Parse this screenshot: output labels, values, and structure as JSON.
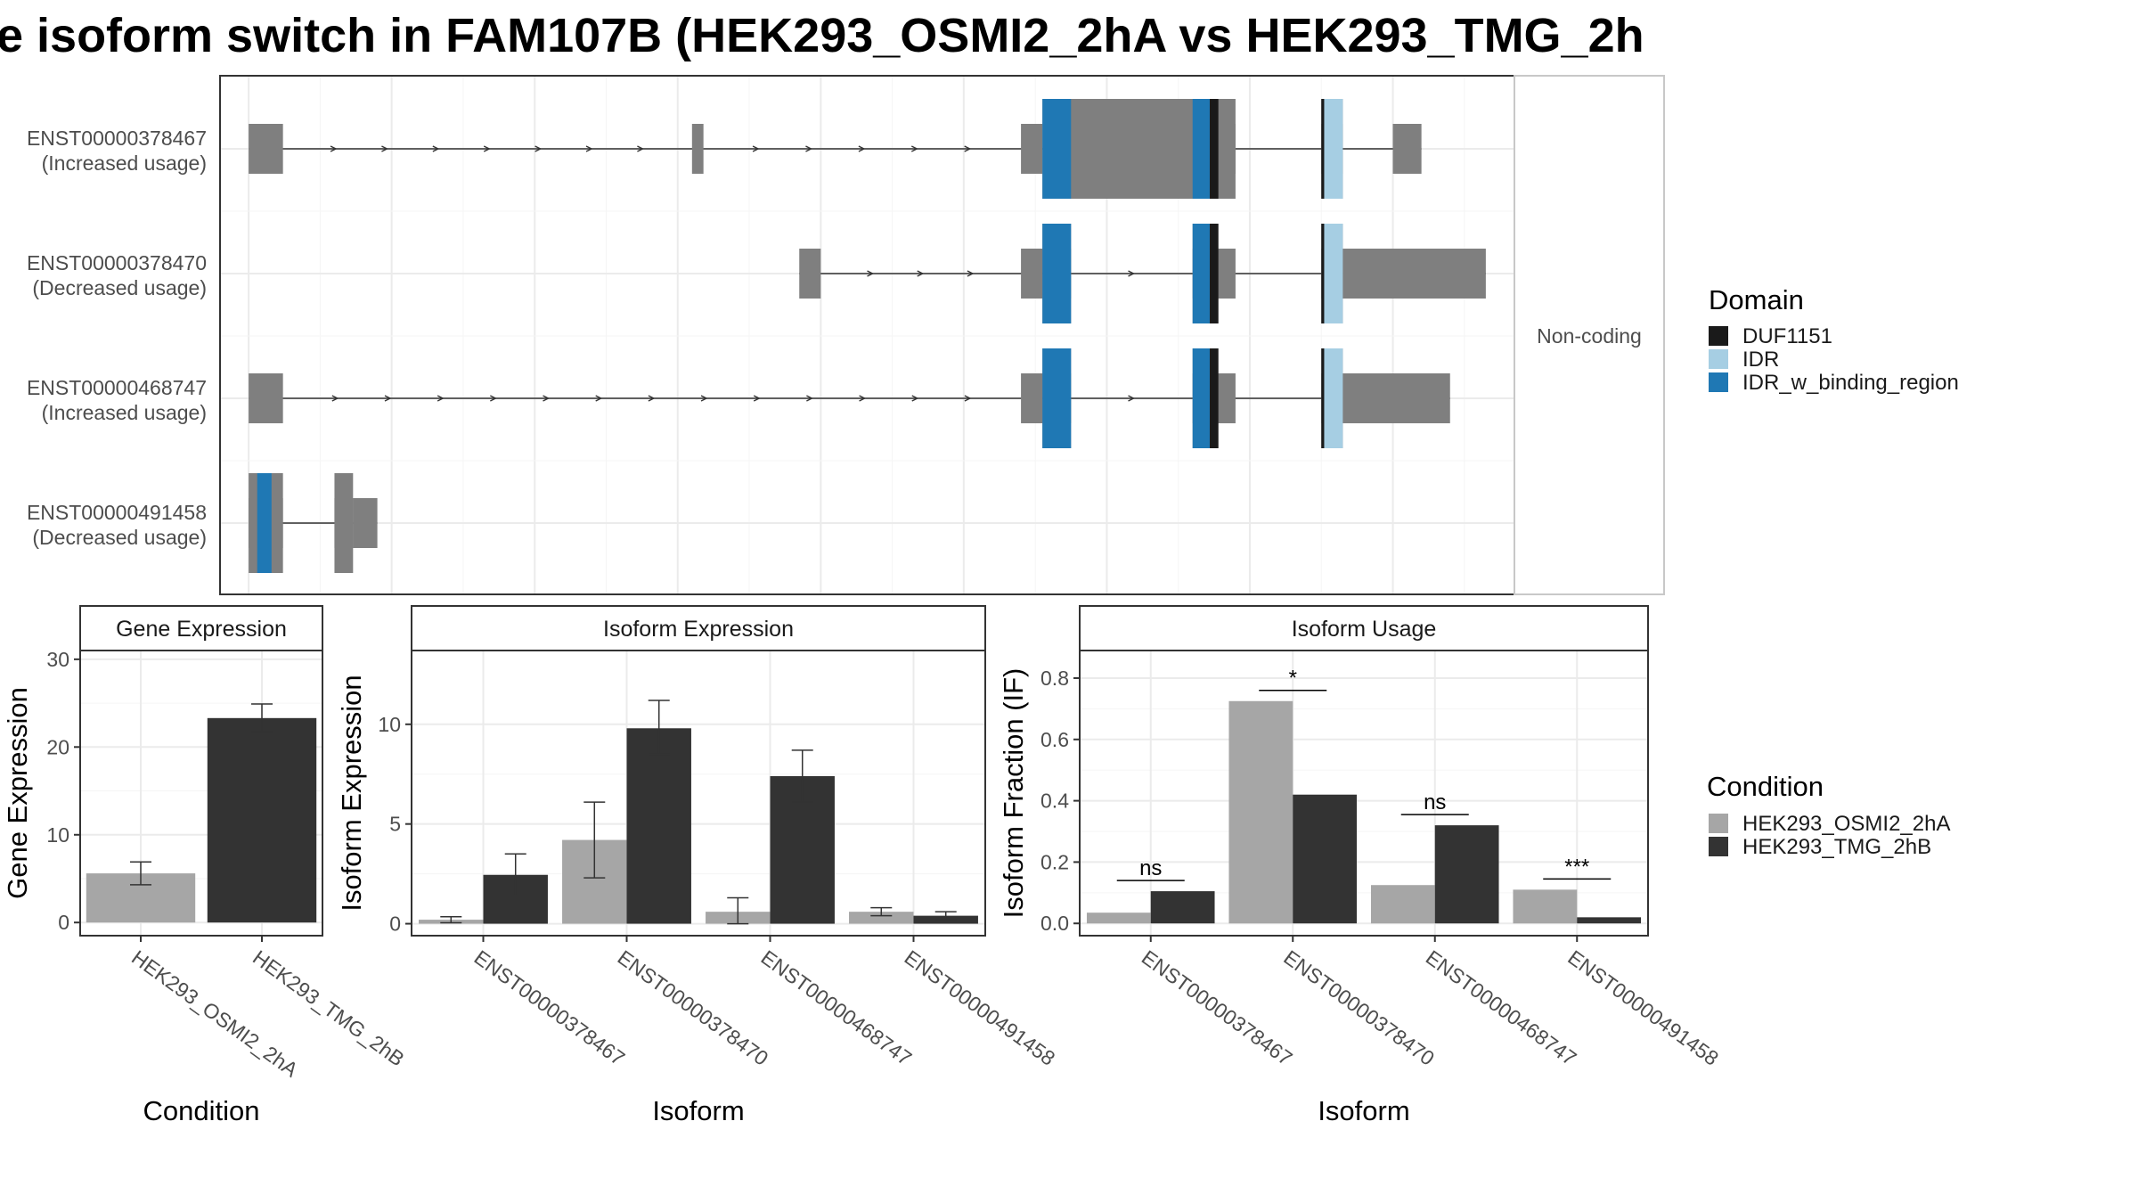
{
  "title": "e isoform switch in FAM107B (HEK293_OSMI2_2hA vs HEK293_TMG_2h",
  "colors": {
    "exon": "#7f7f7f",
    "DUF1151": "#1a1a1a",
    "IDR": "#a6cee3",
    "IDR_w_binding_region": "#1f78b4",
    "HEK293_OSMI2_2hA": "#a6a6a6",
    "HEK293_TMG_2hB": "#333333",
    "panel_border": "#333333",
    "grid": "#ebebeb"
  },
  "chart_data": [
    {
      "type": "gene-structure",
      "facet_label": "Non-coding",
      "transcripts": [
        {
          "id": "ENST00000378467",
          "label_line1": "ENST00000378467",
          "label_line2": "(Increased usage)",
          "exons": [
            [
              0,
              0.24
            ],
            [
              3.1,
              3.18
            ],
            [
              5.4,
              5.55
            ],
            [
              6.6,
              6.9
            ],
            [
              7.5,
              7.65
            ],
            [
              8.0,
              8.2
            ]
          ],
          "cds": [
            [
              5.55,
              6.9
            ],
            [
              7.5,
              7.65
            ]
          ],
          "domains": [
            {
              "name": "IDR_w_binding_region",
              "start": 5.55,
              "end": 5.75
            },
            {
              "name": "IDR_w_binding_region",
              "start": 6.6,
              "end": 6.72
            },
            {
              "name": "DUF1151",
              "start": 6.72,
              "end": 6.78
            },
            {
              "name": "DUF1151",
              "start": 7.5,
              "end": 7.52
            },
            {
              "name": "IDR",
              "start": 7.52,
              "end": 7.65
            }
          ]
        },
        {
          "id": "ENST00000378470",
          "label_line1": "ENST00000378470",
          "label_line2": "(Decreased usage)",
          "exons": [
            [
              3.85,
              4.0
            ],
            [
              5.4,
              5.55
            ],
            [
              5.55,
              5.75
            ],
            [
              6.6,
              6.9
            ],
            [
              7.5,
              7.65
            ],
            [
              7.65,
              8.65
            ]
          ],
          "cds": [
            [
              5.55,
              5.75
            ],
            [
              6.6,
              6.78
            ],
            [
              7.5,
              7.65
            ]
          ],
          "domains": [
            {
              "name": "IDR_w_binding_region",
              "start": 5.55,
              "end": 5.75
            },
            {
              "name": "IDR_w_binding_region",
              "start": 6.6,
              "end": 6.72
            },
            {
              "name": "DUF1151",
              "start": 6.72,
              "end": 6.78
            },
            {
              "name": "DUF1151",
              "start": 7.5,
              "end": 7.52
            },
            {
              "name": "IDR",
              "start": 7.52,
              "end": 7.65
            }
          ]
        },
        {
          "id": "ENST00000468747",
          "label_line1": "ENST00000468747",
          "label_line2": "(Increased usage)",
          "exons": [
            [
              0,
              0.24
            ],
            [
              5.4,
              5.55
            ],
            [
              5.55,
              5.75
            ],
            [
              6.6,
              6.9
            ],
            [
              7.5,
              7.65
            ],
            [
              7.65,
              8.4
            ]
          ],
          "cds": [
            [
              5.55,
              5.75
            ],
            [
              6.6,
              6.78
            ],
            [
              7.5,
              7.65
            ]
          ],
          "domains": [
            {
              "name": "IDR_w_binding_region",
              "start": 5.55,
              "end": 5.75
            },
            {
              "name": "IDR_w_binding_region",
              "start": 6.6,
              "end": 6.72
            },
            {
              "name": "DUF1151",
              "start": 6.72,
              "end": 6.78
            },
            {
              "name": "DUF1151",
              "start": 7.5,
              "end": 7.52
            },
            {
              "name": "IDR",
              "start": 7.52,
              "end": 7.65
            }
          ]
        },
        {
          "id": "ENST00000491458",
          "label_line1": "ENST00000491458",
          "label_line2": "(Decreased usage)",
          "exons": [
            [
              0,
              0.24
            ],
            [
              0.6,
              0.73
            ],
            [
              0.73,
              0.9
            ]
          ],
          "cds": [
            [
              0,
              0.24
            ],
            [
              0.6,
              0.73
            ]
          ],
          "domains": [
            {
              "name": "IDR_w_binding_region",
              "start": 0.06,
              "end": 0.16
            }
          ]
        }
      ],
      "legend": {
        "title": "Domain",
        "entries": [
          "DUF1151",
          "IDR",
          "IDR_w_binding_region"
        ]
      }
    },
    {
      "type": "bar",
      "strip": "Gene Expression",
      "xlabel": "Condition",
      "ylabel": "Gene Expression",
      "categories": [
        "HEK293_OSMI2_2hA",
        "HEK293_TMG_2hB"
      ],
      "values": [
        5.6,
        23.3
      ],
      "errors": [
        [
          4.3,
          6.9
        ],
        [
          21.7,
          24.9
        ]
      ],
      "ylim": [
        -1.5,
        31
      ],
      "yticks": [
        0,
        10,
        20,
        30
      ]
    },
    {
      "type": "bar",
      "strip": "Isoform Expression",
      "xlabel": "Isoform",
      "ylabel": "Isoform Expression",
      "categories": [
        "ENST00000378467",
        "ENST00000378470",
        "ENST00000468747",
        "ENST00000491458"
      ],
      "series": [
        {
          "name": "HEK293_OSMI2_2hA",
          "values": [
            0.2,
            4.2,
            0.6,
            0.6
          ],
          "errors": [
            [
              0.05,
              0.35
            ],
            [
              2.3,
              6.1
            ],
            [
              0.0,
              1.3
            ],
            [
              0.4,
              0.8
            ]
          ]
        },
        {
          "name": "HEK293_TMG_2hB",
          "values": [
            2.45,
            9.8,
            7.4,
            0.4
          ],
          "errors": [
            [
              1.4,
              3.5
            ],
            [
              8.5,
              11.2
            ],
            [
              6.1,
              8.7
            ],
            [
              0.2,
              0.6
            ]
          ]
        }
      ],
      "ylim": [
        -0.6,
        13.7
      ],
      "yticks": [
        0,
        5,
        10
      ]
    },
    {
      "type": "bar",
      "strip": "Isoform Usage",
      "xlabel": "Isoform",
      "ylabel": "Isoform Fraction (IF)",
      "categories": [
        "ENST00000378467",
        "ENST00000378470",
        "ENST00000468747",
        "ENST00000491458"
      ],
      "series": [
        {
          "name": "HEK293_OSMI2_2hA",
          "values": [
            0.035,
            0.725,
            0.125,
            0.11
          ]
        },
        {
          "name": "HEK293_TMG_2hB",
          "values": [
            0.105,
            0.42,
            0.32,
            0.02
          ]
        }
      ],
      "significance": [
        {
          "label": "ns",
          "y": 0.14
        },
        {
          "label": "*",
          "y": 0.76
        },
        {
          "label": "ns",
          "y": 0.355
        },
        {
          "label": "***",
          "y": 0.145
        }
      ],
      "ylim": [
        -0.04,
        0.89
      ],
      "yticks": [
        "0.0",
        "0.2",
        "0.4",
        "0.6",
        "0.8"
      ],
      "legend": {
        "title": "Condition",
        "entries": [
          "HEK293_OSMI2_2hA",
          "HEK293_TMG_2hB"
        ]
      }
    }
  ]
}
